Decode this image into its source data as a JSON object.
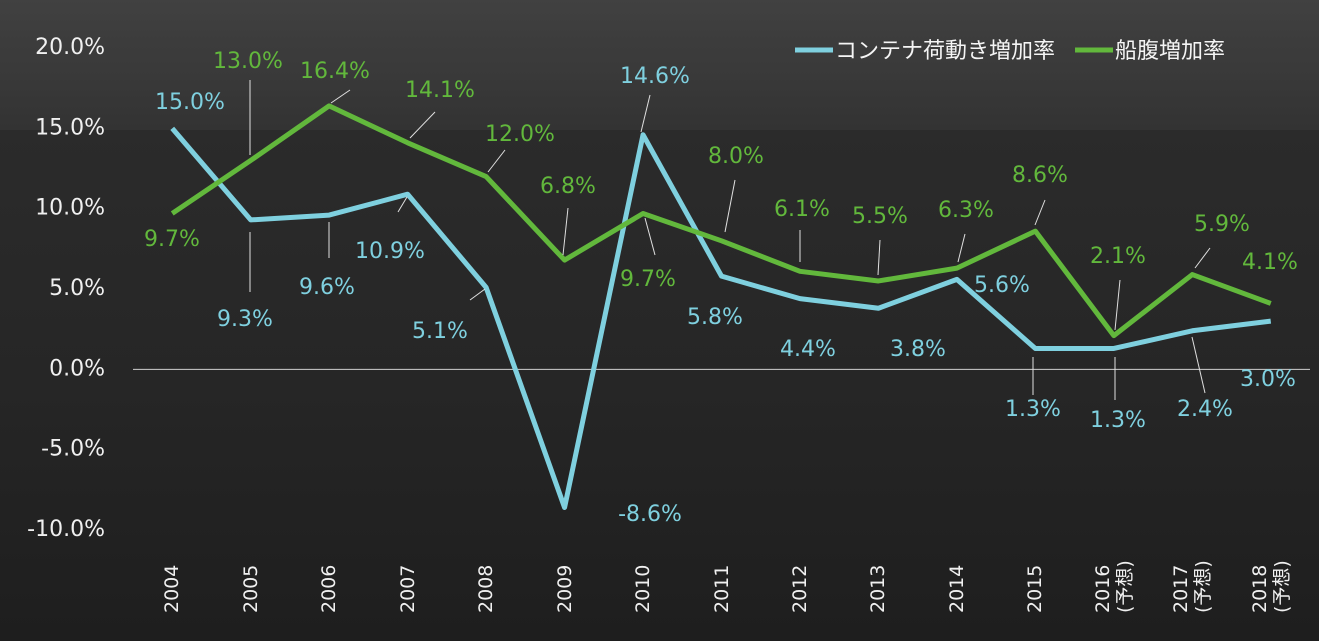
{
  "chart_data": {
    "type": "line",
    "categories": [
      "2004",
      "2005",
      "2006",
      "2007",
      "2008",
      "2009",
      "2010",
      "2011",
      "2012",
      "2013",
      "2014",
      "2015",
      "2016\n(予想)",
      "2017\n(予想)",
      "2018\n(予想)"
    ],
    "series": [
      {
        "name": "コンテナ荷動き増加率",
        "color": "#7fd0df",
        "values": [
          15.0,
          9.3,
          9.6,
          10.9,
          5.1,
          -8.6,
          14.6,
          5.8,
          4.4,
          3.8,
          5.6,
          1.3,
          1.3,
          2.4,
          3.0
        ],
        "value_labels": [
          "15.0%",
          "9.3%",
          "9.6%",
          "10.9%",
          "5.1%",
          "-8.6%",
          "14.6%",
          "5.8%",
          "4.4%",
          "3.8%",
          "5.6%",
          "1.3%",
          "1.3%",
          "2.4%",
          "3.0%"
        ]
      },
      {
        "name": "船腹増加率",
        "color": "#62b83c",
        "values": [
          9.7,
          13.0,
          16.4,
          14.1,
          12.0,
          6.8,
          9.7,
          8.0,
          6.1,
          5.5,
          6.3,
          8.6,
          2.1,
          5.9,
          4.1
        ],
        "value_labels": [
          "9.7%",
          "13.0%",
          "16.4%",
          "14.1%",
          "12.0%",
          "6.8%",
          "9.7%",
          "8.0%",
          "6.1%",
          "5.5%",
          "6.3%",
          "8.6%",
          "2.1%",
          "5.9%",
          "4.1%"
        ]
      }
    ],
    "ylim": [
      -10,
      20
    ],
    "yticks": [
      {
        "value": -10,
        "label": "-10.0%"
      },
      {
        "value": -5,
        "label": "-5.0%"
      },
      {
        "value": 0,
        "label": "0.0%"
      },
      {
        "value": 5,
        "label": "5.0%"
      },
      {
        "value": 10,
        "label": "10.0%"
      },
      {
        "value": 15,
        "label": "15.0%"
      },
      {
        "value": 20,
        "label": "20.0%"
      }
    ],
    "legend": "top-right"
  }
}
